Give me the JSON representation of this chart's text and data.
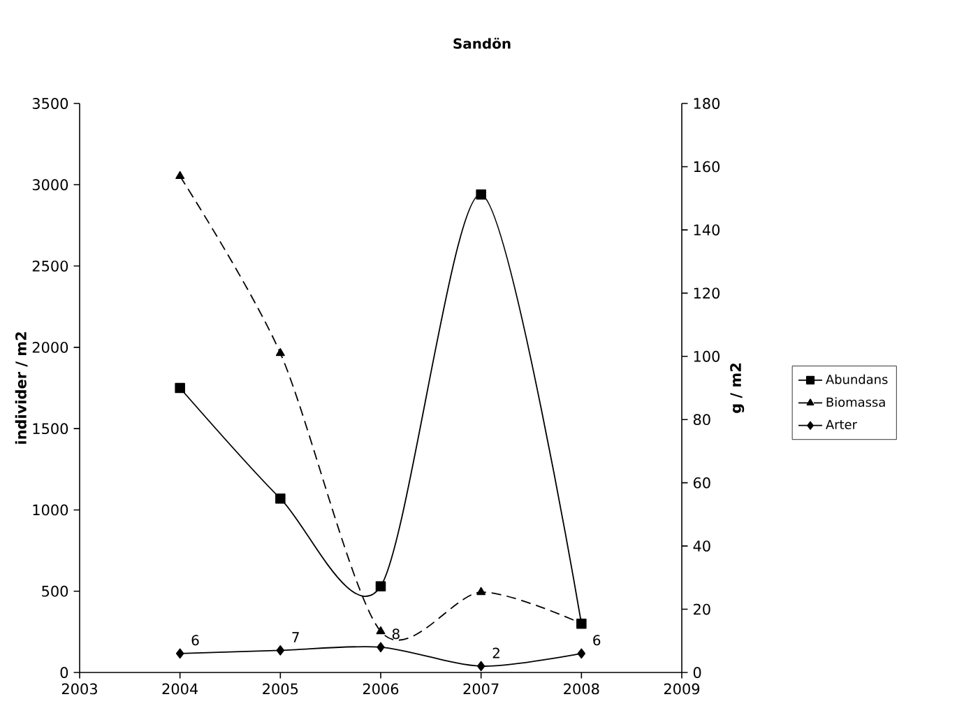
{
  "chart_data": {
    "type": "line",
    "title": "Sandön",
    "ylabel": "individer / m2",
    "y2label": "g / m2",
    "x": [
      2004,
      2005,
      2006,
      2007,
      2008
    ],
    "series": [
      {
        "name": "Abundans",
        "color": "#000000",
        "marker": "square",
        "line_style": "solid",
        "values": [
          1750,
          1070,
          530,
          2940,
          300
        ]
      },
      {
        "name": "Biomassa",
        "color": "#000000",
        "marker": "triangle",
        "line_style": "dashed",
        "axis": "y2",
        "values": [
          157,
          101,
          13,
          25.4,
          15.5
        ]
      },
      {
        "name": "Arter",
        "color": "#000000",
        "marker": "diamond",
        "line_style": "solid",
        "axis": "y2",
        "values": [
          6,
          7,
          8,
          2,
          6
        ],
        "value_labels": [
          "6",
          "7",
          "8",
          "2",
          "6"
        ]
      }
    ],
    "xlim": [
      2003,
      2009
    ],
    "xticks": [
      2003,
      2004,
      2005,
      2006,
      2007,
      2008,
      2009
    ],
    "ylim": [
      0,
      3500
    ],
    "yticks": [
      0,
      500,
      1000,
      1500,
      2000,
      2500,
      3000,
      3500
    ],
    "y2lim": [
      0,
      180
    ],
    "y2ticks": [
      0,
      20,
      40,
      60,
      80,
      100,
      120,
      140,
      160,
      180
    ],
    "legend": "right",
    "grid": false
  }
}
